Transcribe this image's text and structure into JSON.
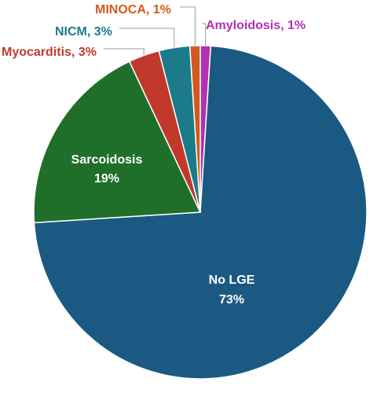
{
  "chart_data": {
    "type": "pie",
    "title": "",
    "slices": [
      {
        "label": "Amyloidosis",
        "value": 1,
        "value_label": "1%",
        "color": "#b331b0"
      },
      {
        "label": "No LGE",
        "value": 73,
        "value_label": "73%",
        "color": "#1a5a82"
      },
      {
        "label": "Sarcoidosis",
        "value": 19,
        "value_label": "19%",
        "color": "#1f6f2a"
      },
      {
        "label": "Myocarditis",
        "value": 3,
        "value_label": "3%",
        "color": "#c0392b"
      },
      {
        "label": "NICM",
        "value": 3,
        "value_label": "3%",
        "color": "#1c7b8a"
      },
      {
        "label": "MINOCA",
        "value": 1,
        "value_label": "1%",
        "color": "#d35a1e"
      }
    ],
    "labels": {
      "amyloidosis": "Amyloidosis, 1%",
      "no_lge_name": "No LGE",
      "no_lge_pct": "73%",
      "sarcoidosis_name": "Sarcoidosis",
      "sarcoidosis_pct": "19%",
      "myocarditis": "Myocarditis, 3%",
      "nicm": "NICM, 3%",
      "minoca": "MINOCA, 1%"
    },
    "legend": "none"
  }
}
